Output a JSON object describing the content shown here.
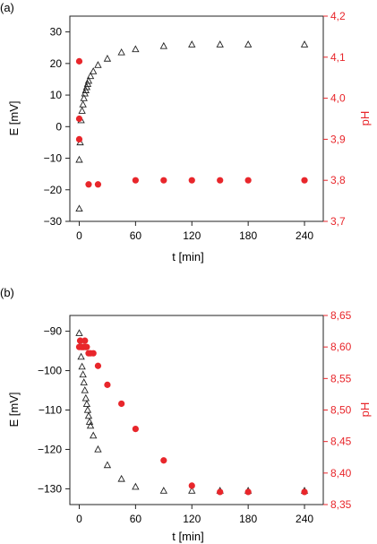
{
  "colors": {
    "e_series": "#222222",
    "ph_series": "#e8262b",
    "axis": "#222222"
  },
  "chart_data": [
    {
      "panel_label": "(a)",
      "type": "scatter",
      "xlabel": "t [min]",
      "ylabel_left": "E [mV]",
      "ylabel_right": "pH",
      "xlim": [
        -10,
        260
      ],
      "xticks": [
        0,
        60,
        120,
        180,
        240
      ],
      "ylim_left": [
        -30,
        35
      ],
      "yticks_left": [
        -30,
        -20,
        -10,
        0,
        10,
        20,
        30
      ],
      "ylim_right": [
        3.7,
        4.2
      ],
      "yticks_right": [
        3.7,
        3.8,
        3.9,
        4.0,
        4.1,
        4.2
      ],
      "ytick_labels_right": [
        "3,7",
        "3,8",
        "3,9",
        "4,0",
        "4,1",
        "4,2"
      ],
      "series": [
        {
          "marker": "triangle-open",
          "axis": "left",
          "x": [
            0,
            0,
            1,
            2,
            3,
            4,
            5,
            6,
            7,
            8,
            9,
            10,
            12,
            15,
            20,
            30,
            45,
            60,
            90,
            120,
            150,
            180,
            240
          ],
          "y": [
            -26,
            -10.5,
            -5,
            2,
            5,
            7,
            9,
            10.5,
            11.5,
            12.5,
            13.5,
            14.5,
            16,
            17.5,
            19.5,
            21.5,
            23.5,
            24.5,
            25.5,
            26,
            26,
            26,
            26
          ]
        },
        {
          "marker": "circle-filled",
          "axis": "right",
          "x": [
            0,
            0,
            0,
            10,
            20,
            60,
            90,
            120,
            150,
            180,
            240
          ],
          "y": [
            4.09,
            3.95,
            3.9,
            3.79,
            3.79,
            3.8,
            3.8,
            3.8,
            3.8,
            3.8,
            3.8
          ]
        }
      ]
    },
    {
      "panel_label": "(b)",
      "type": "scatter",
      "xlabel": "t [min]",
      "ylabel_left": "E [mV]",
      "ylabel_right": "pH",
      "xlim": [
        -10,
        260
      ],
      "xticks": [
        0,
        60,
        120,
        180,
        240
      ],
      "ylim_left": [
        -134,
        -86
      ],
      "yticks_left": [
        -130,
        -120,
        -110,
        -100,
        -90
      ],
      "ylim_right": [
        8.35,
        8.65
      ],
      "yticks_right": [
        8.35,
        8.4,
        8.45,
        8.5,
        8.55,
        8.6,
        8.65
      ],
      "ytick_labels_right": [
        "8,35",
        "8,40",
        "8,45",
        "8,50",
        "8,55",
        "8,60",
        "8,65"
      ],
      "series": [
        {
          "marker": "triangle-open",
          "axis": "left",
          "x": [
            0,
            1,
            2,
            3,
            4,
            5,
            6,
            7,
            8,
            9,
            10,
            11,
            12,
            15,
            20,
            30,
            45,
            60,
            90,
            120,
            150,
            180,
            240
          ],
          "y": [
            -90.5,
            -93.5,
            -96.5,
            -99,
            -101,
            -103,
            -105,
            -107,
            -108.5,
            -110,
            -111.5,
            -113,
            -114,
            -116.5,
            -120,
            -124,
            -127.5,
            -129.5,
            -130.5,
            -130.5,
            -130.5,
            -130.5,
            -130.5
          ]
        },
        {
          "marker": "circle-filled",
          "axis": "right",
          "x": [
            0,
            1,
            2,
            3,
            4,
            5,
            6,
            7,
            8,
            10,
            12,
            15,
            20,
            30,
            45,
            60,
            90,
            120,
            150,
            180,
            240
          ],
          "y": [
            8.6,
            8.61,
            8.6,
            8.6,
            8.6,
            8.6,
            8.61,
            8.6,
            8.6,
            8.59,
            8.59,
            8.59,
            8.57,
            8.54,
            8.51,
            8.47,
            8.42,
            8.38,
            8.37,
            8.37,
            8.37
          ]
        }
      ]
    }
  ]
}
